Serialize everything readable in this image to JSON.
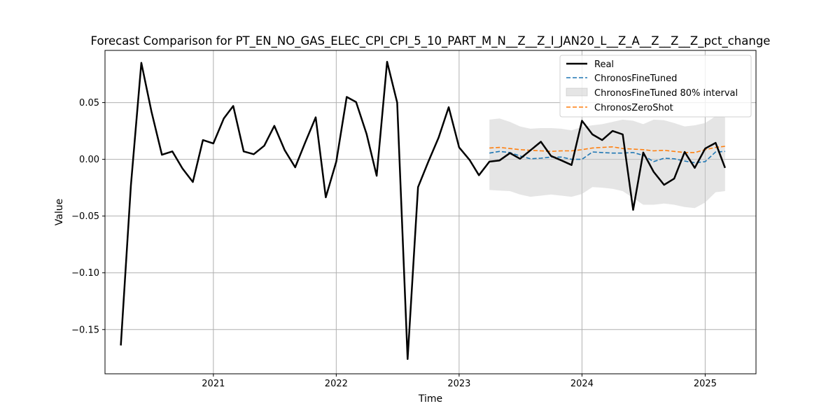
{
  "chart_data": {
    "type": "line",
    "title": "Forecast Comparison for PT_EN_NO_GAS_ELEC_CPI_CPI_5_10_PART_M_N__Z__Z_I_JAN20_L__Z_A__Z__Z__Z_pct_change",
    "xlabel": "Time",
    "ylabel": "Value",
    "xlim": [
      "2020-02-14",
      "2025-06-01"
    ],
    "ylim": [
      -0.189,
      0.096
    ],
    "x_ticks": [
      "2021-01-01",
      "2022-01-01",
      "2023-01-01",
      "2024-01-01",
      "2025-01-01"
    ],
    "x_tick_labels": [
      "2021",
      "2022",
      "2023",
      "2024",
      "2025"
    ],
    "y_ticks": [
      -0.15,
      -0.1,
      -0.05,
      0.0,
      0.05
    ],
    "y_tick_labels": [
      "−0.15",
      "−0.10",
      "−0.05",
      "0.00",
      "0.05"
    ],
    "grid": true,
    "legend_position": "top-right",
    "series": [
      {
        "name": "Real",
        "color": "#000000",
        "style": "solid",
        "x": [
          "2020-04-01",
          "2020-05-01",
          "2020-06-01",
          "2020-07-01",
          "2020-08-01",
          "2020-09-01",
          "2020-10-01",
          "2020-11-01",
          "2020-12-01",
          "2021-01-01",
          "2021-02-01",
          "2021-03-01",
          "2021-04-01",
          "2021-05-01",
          "2021-06-01",
          "2021-07-01",
          "2021-08-01",
          "2021-09-01",
          "2021-10-01",
          "2021-11-01",
          "2021-12-01",
          "2022-01-01",
          "2022-02-01",
          "2022-03-01",
          "2022-04-01",
          "2022-05-01",
          "2022-06-01",
          "2022-07-01",
          "2022-08-01",
          "2022-09-01",
          "2022-10-01",
          "2022-11-01",
          "2022-12-01",
          "2023-01-01",
          "2023-02-01",
          "2023-03-01",
          "2023-04-01",
          "2023-05-01",
          "2023-06-01",
          "2023-07-01",
          "2023-08-01",
          "2023-09-01",
          "2023-10-01",
          "2023-11-01",
          "2023-12-01",
          "2024-01-01",
          "2024-02-01",
          "2024-03-01",
          "2024-04-01",
          "2024-05-01",
          "2024-06-01",
          "2024-07-01",
          "2024-08-01",
          "2024-09-01",
          "2024-10-01",
          "2024-11-01",
          "2024-12-01",
          "2025-01-01",
          "2025-02-01",
          "2025-03-01"
        ],
        "values": [
          -0.164,
          -0.023,
          0.085,
          0.042,
          0.004,
          0.007,
          -0.008,
          -0.02,
          0.017,
          0.014,
          0.036,
          0.047,
          0.007,
          0.0045,
          0.012,
          0.0295,
          0.008,
          -0.007,
          0.015,
          0.037,
          -0.0335,
          -0.002,
          0.055,
          0.0505,
          0.0225,
          -0.0145,
          0.086,
          0.05,
          -0.176,
          -0.0245,
          -0.0025,
          0.019,
          0.046,
          0.0105,
          -0.0005,
          -0.014,
          -0.002,
          -0.001,
          0.0055,
          0.0005,
          0.008,
          0.0155,
          0.003,
          -0.001,
          -0.005,
          0.034,
          0.022,
          0.017,
          0.025,
          0.022,
          -0.0445,
          0.006,
          -0.011,
          -0.0225,
          -0.017,
          0.0065,
          -0.0075,
          0.0095,
          0.0145,
          -0.0075
        ]
      },
      {
        "name": "ChronosFineTuned",
        "color": "#1f77b4",
        "style": "dashed",
        "x": [
          "2023-04-01",
          "2023-05-01",
          "2023-06-01",
          "2023-07-01",
          "2023-08-01",
          "2023-09-01",
          "2023-10-01",
          "2023-11-01",
          "2023-12-01",
          "2024-01-01",
          "2024-02-01",
          "2024-03-01",
          "2024-04-01",
          "2024-05-01",
          "2024-06-01",
          "2024-07-01",
          "2024-08-01",
          "2024-09-01",
          "2024-10-01",
          "2024-11-01",
          "2024-12-01",
          "2025-01-01",
          "2025-02-01",
          "2025-03-01"
        ],
        "values": [
          0.0055,
          0.007,
          0.006,
          0.003,
          0.0005,
          0.001,
          0.002,
          0.002,
          0.0,
          0.0,
          0.0065,
          0.006,
          0.0055,
          0.0055,
          0.006,
          0.0035,
          -0.002,
          0.001,
          0.0005,
          -0.0015,
          -0.003,
          -0.002,
          0.0065,
          0.007
        ]
      },
      {
        "name": "ChronosZeroShot",
        "color": "#ff7f0e",
        "style": "dashed",
        "x": [
          "2023-04-01",
          "2023-05-01",
          "2023-06-01",
          "2023-07-01",
          "2023-08-01",
          "2023-09-01",
          "2023-10-01",
          "2023-11-01",
          "2023-12-01",
          "2024-01-01",
          "2024-02-01",
          "2024-03-01",
          "2024-04-01",
          "2024-05-01",
          "2024-06-01",
          "2024-07-01",
          "2024-08-01",
          "2024-09-01",
          "2024-10-01",
          "2024-11-01",
          "2024-12-01",
          "2025-01-01",
          "2025-02-01",
          "2025-03-01"
        ],
        "values": [
          0.01,
          0.0105,
          0.0095,
          0.0085,
          0.008,
          0.0075,
          0.007,
          0.0075,
          0.0075,
          0.0085,
          0.01,
          0.0105,
          0.011,
          0.0095,
          0.009,
          0.0085,
          0.0075,
          0.008,
          0.007,
          0.006,
          0.006,
          0.0085,
          0.0105,
          0.0115
        ]
      }
    ],
    "band": {
      "name": "ChronosFineTuned 80% interval",
      "color": "#cccccc",
      "opacity": 0.5,
      "x": [
        "2023-04-01",
        "2023-05-01",
        "2023-06-01",
        "2023-07-01",
        "2023-08-01",
        "2023-09-01",
        "2023-10-01",
        "2023-11-01",
        "2023-12-01",
        "2024-01-01",
        "2024-02-01",
        "2024-03-01",
        "2024-04-01",
        "2024-05-01",
        "2024-06-01",
        "2024-07-01",
        "2024-08-01",
        "2024-09-01",
        "2024-10-01",
        "2024-11-01",
        "2024-12-01",
        "2025-01-01",
        "2025-02-01",
        "2025-03-01"
      ],
      "upper": [
        0.035,
        0.036,
        0.033,
        0.029,
        0.027,
        0.0275,
        0.0275,
        0.027,
        0.0255,
        0.0285,
        0.03,
        0.031,
        0.033,
        0.035,
        0.034,
        0.031,
        0.035,
        0.0345,
        0.032,
        0.029,
        0.03,
        0.032,
        0.038,
        0.037
      ],
      "lower": [
        -0.027,
        -0.0275,
        -0.028,
        -0.031,
        -0.033,
        -0.032,
        -0.031,
        -0.032,
        -0.033,
        -0.0305,
        -0.0245,
        -0.025,
        -0.026,
        -0.028,
        -0.034,
        -0.04,
        -0.04,
        -0.039,
        -0.04,
        -0.042,
        -0.043,
        -0.038,
        -0.029,
        -0.028
      ]
    }
  }
}
